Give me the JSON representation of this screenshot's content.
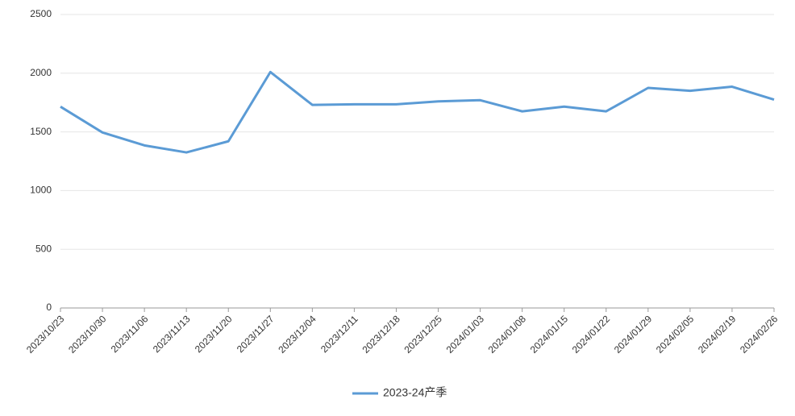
{
  "chart_data": {
    "type": "line",
    "categories": [
      "2023/10/23",
      "2023/10/30",
      "2023/11/06",
      "2023/11/13",
      "2023/11/20",
      "2023/11/27",
      "2023/12/04",
      "2023/12/11",
      "2023/12/18",
      "2023/12/25",
      "2024/01/03",
      "2024/01/08",
      "2024/01/15",
      "2024/01/22",
      "2024/01/29",
      "2024/02/05",
      "2024/02/19",
      "2024/02/26"
    ],
    "series": [
      {
        "name": "2023-24产季",
        "color": "#5b9bd5",
        "values": [
          1715,
          1495,
          1385,
          1325,
          1420,
          2010,
          1730,
          1735,
          1735,
          1760,
          1770,
          1675,
          1715,
          1675,
          1875,
          1850,
          1885,
          1775
        ]
      }
    ],
    "ylim": [
      0,
      2500
    ],
    "yticks": [
      0,
      500,
      1000,
      1500,
      2000,
      2500
    ],
    "grid": true,
    "legend": "bottom"
  }
}
